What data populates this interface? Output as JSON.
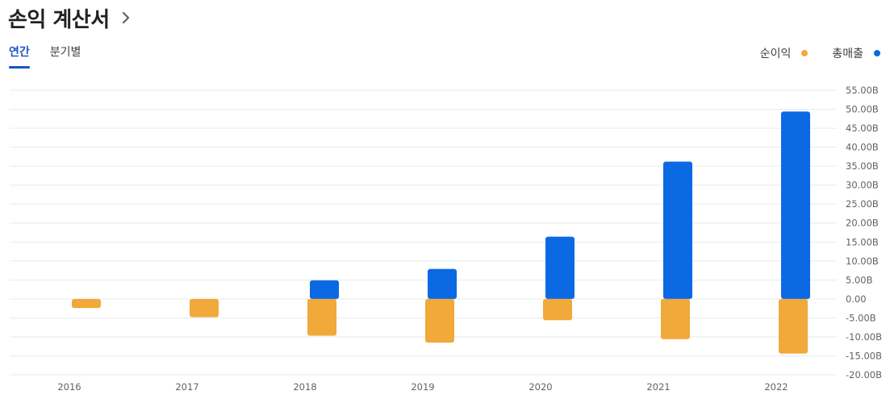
{
  "header": {
    "title": "손익 계산서"
  },
  "tabs": [
    {
      "label": "연간",
      "active": true
    },
    {
      "label": "분기별",
      "active": false
    }
  ],
  "colors": {
    "revenue": "#0b69e3",
    "net_income": "#f1a93a",
    "grid": "#e8eaed",
    "axis_text": "#5f6368"
  },
  "chart_data": {
    "type": "bar",
    "categories": [
      "2016",
      "2017",
      "2018",
      "2019",
      "2020",
      "2021",
      "2022"
    ],
    "series": [
      {
        "name": "총매출",
        "color": "#0b69e3",
        "values": [
          0,
          0,
          4.9,
          7.9,
          16.4,
          36.2,
          49.4
        ]
      },
      {
        "name": "순이익",
        "color": "#f1a93a",
        "values": [
          -2.4,
          -4.8,
          -9.7,
          -11.5,
          -5.6,
          -10.6,
          -14.4
        ]
      }
    ],
    "ylim": [
      -20,
      55
    ],
    "yticks": [
      55,
      50,
      45,
      40,
      35,
      30,
      25,
      20,
      15,
      10,
      5,
      0,
      -5,
      -10,
      -15,
      -20
    ],
    "ytick_labels": [
      "55.00B",
      "50.00B",
      "45.00B",
      "40.00B",
      "35.00B",
      "30.00B",
      "25.00B",
      "20.00B",
      "15.00B",
      "10.00B",
      "5.00B",
      "0.00",
      "-5.00B",
      "-10.00B",
      "-15.00B",
      "-20.00B"
    ],
    "legend": [
      {
        "label": "순이익",
        "color": "#f1a93a"
      },
      {
        "label": "총매출",
        "color": "#0b69e3"
      }
    ],
    "legend_position": "top-right",
    "grid": true
  }
}
